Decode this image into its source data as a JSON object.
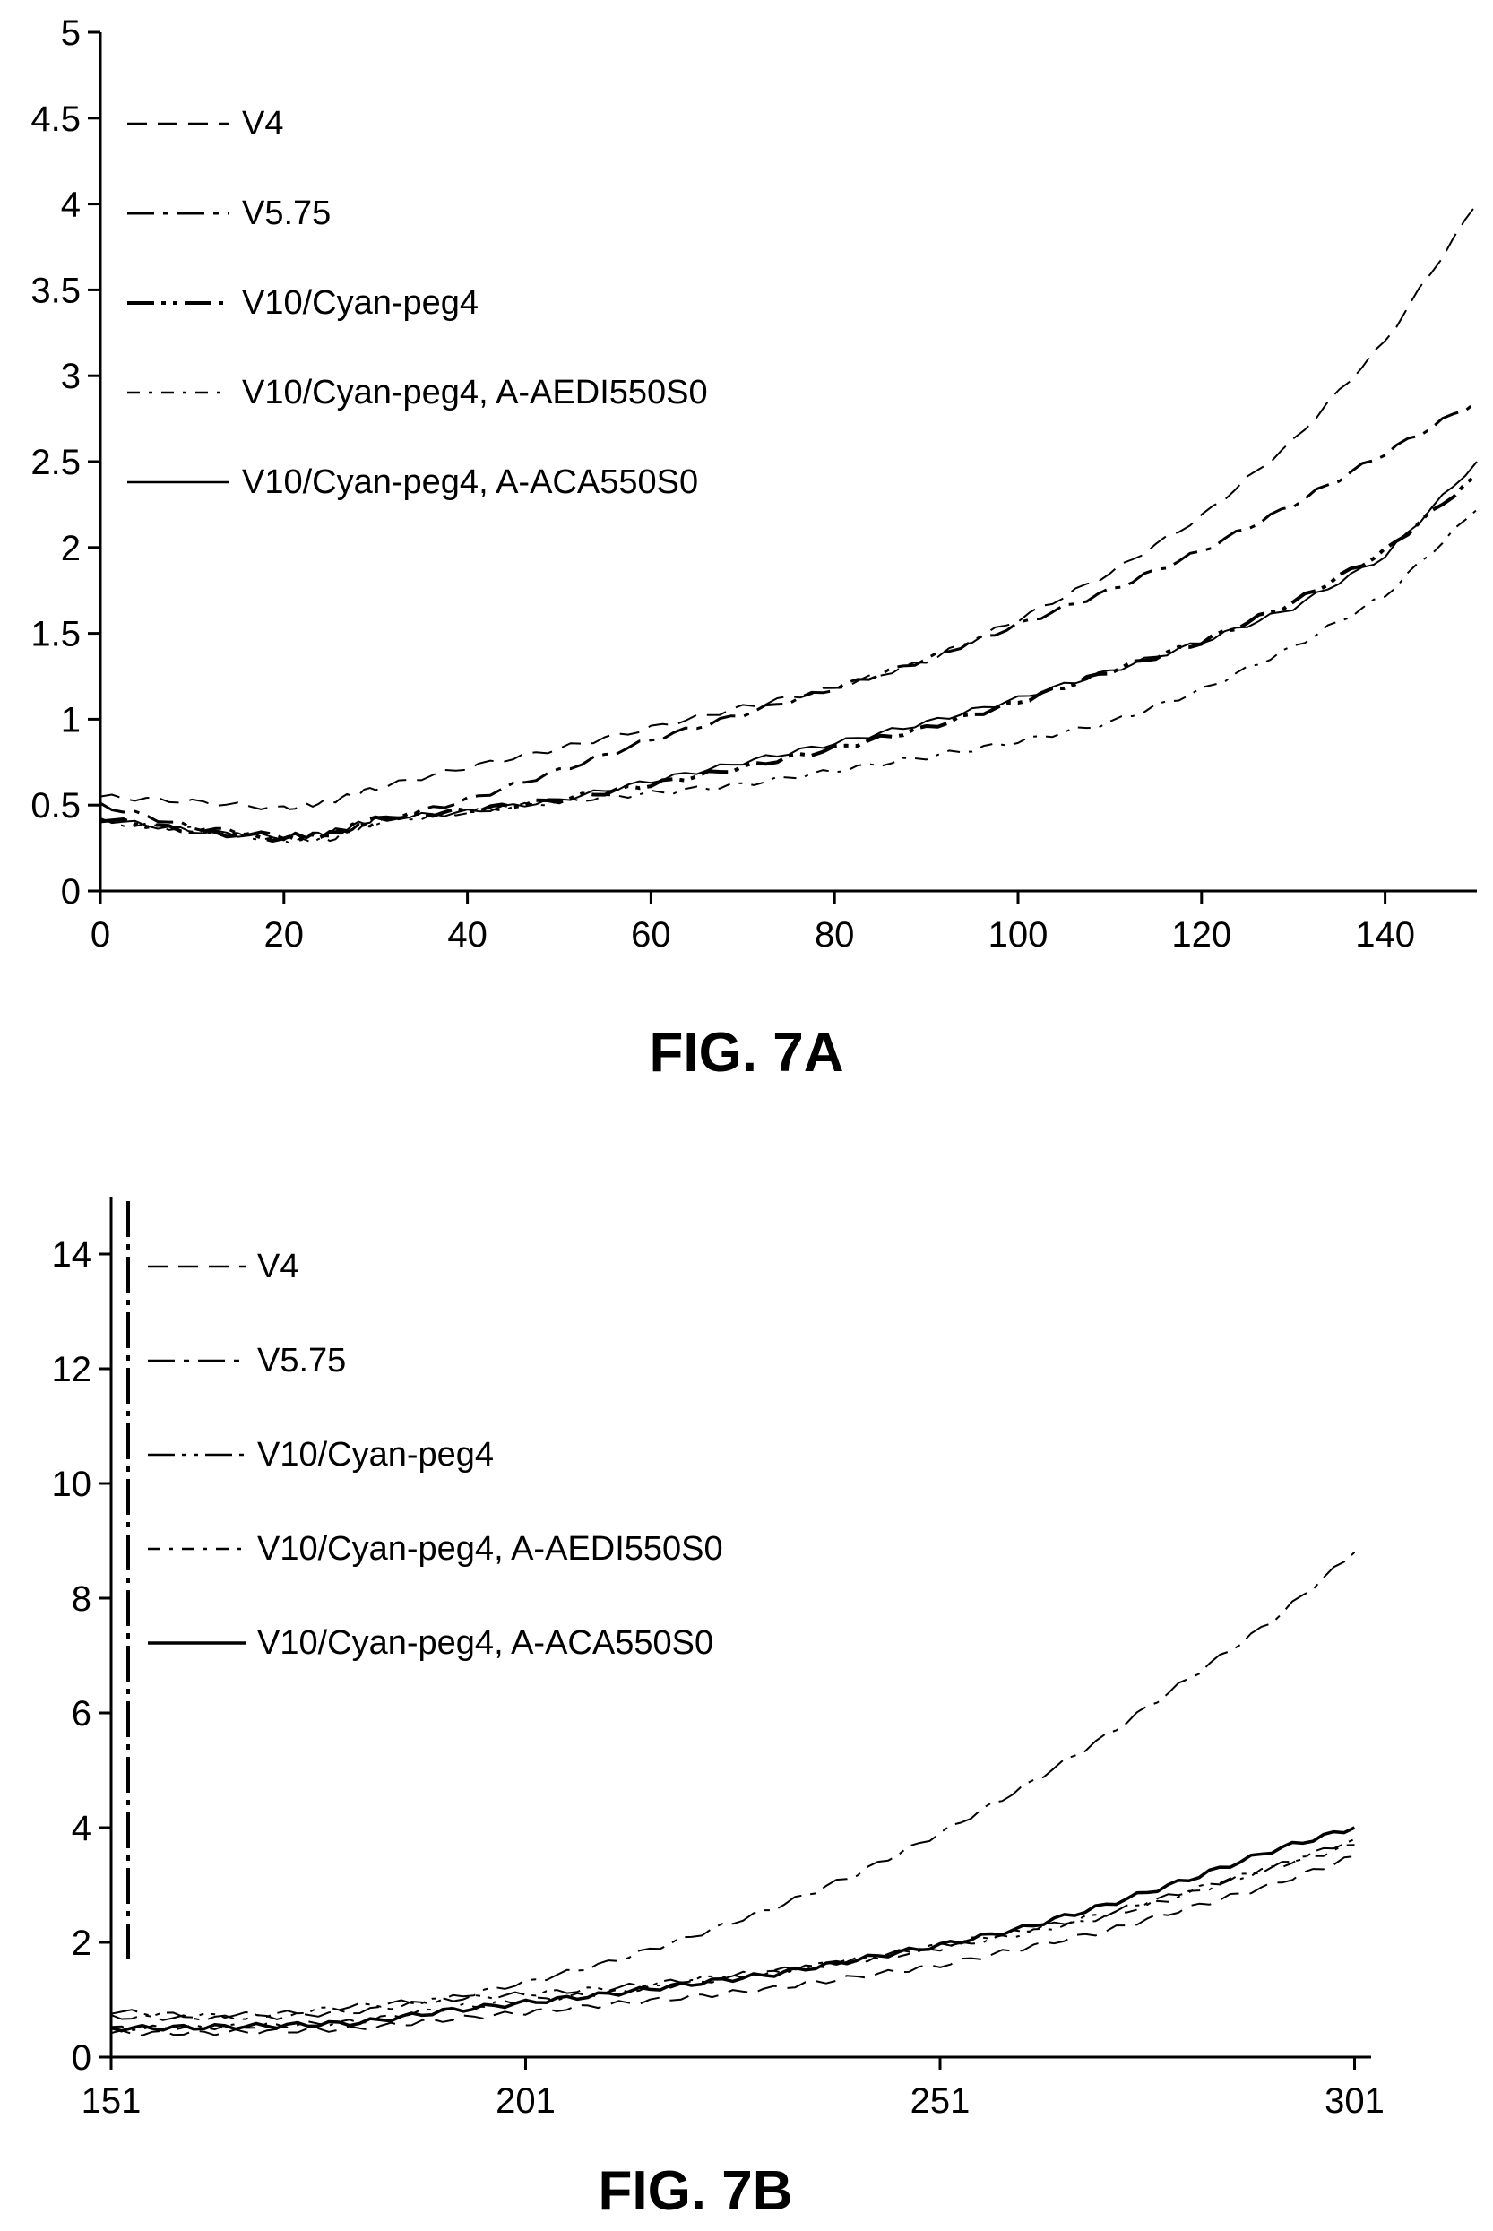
{
  "chart_data": [
    {
      "type": "line",
      "caption": "FIG. 7A",
      "xlim": [
        0,
        150
      ],
      "ylim": [
        0,
        5
      ],
      "xticks": [
        "0",
        "20",
        "40",
        "60",
        "80",
        "100",
        "120",
        "140"
      ],
      "yticks": [
        "0",
        "0.5",
        "1",
        "1.5",
        "2",
        "2.5",
        "3",
        "3.5",
        "4",
        "4.5",
        "5"
      ],
      "legend_position": "top-left",
      "x": [
        0,
        10,
        20,
        25,
        30,
        40,
        50,
        60,
        70,
        80,
        90,
        100,
        110,
        120,
        130,
        140,
        150
      ],
      "series": [
        {
          "name": "V4",
          "dash": "22,12",
          "width": 2,
          "values": [
            0.55,
            0.52,
            0.48,
            0.52,
            0.6,
            0.72,
            0.83,
            0.95,
            1.07,
            1.18,
            1.34,
            1.58,
            1.85,
            2.18,
            2.62,
            3.2,
            4.0
          ]
        },
        {
          "name": "V5.75",
          "dash": "30,10,6,10",
          "width": 3,
          "values": [
            0.5,
            0.37,
            0.32,
            0.33,
            0.4,
            0.53,
            0.7,
            0.88,
            1.03,
            1.18,
            1.35,
            1.55,
            1.75,
            1.98,
            2.25,
            2.55,
            2.85
          ]
        },
        {
          "name": "V10/Cyan-peg4",
          "dash": "30,8,5,8,5,8",
          "width": 4,
          "values": [
            0.42,
            0.35,
            0.3,
            0.33,
            0.42,
            0.47,
            0.53,
            0.62,
            0.72,
            0.83,
            0.95,
            1.1,
            1.28,
            1.45,
            1.68,
            1.98,
            2.42
          ]
        },
        {
          "name": "V10/Cyan-peg4, A-AEDI550S0",
          "dash": "14,10,4,10",
          "width": 2,
          "values": [
            0.4,
            0.36,
            0.29,
            0.3,
            0.4,
            0.46,
            0.52,
            0.57,
            0.62,
            0.7,
            0.78,
            0.87,
            0.98,
            1.17,
            1.42,
            1.72,
            2.22
          ]
        },
        {
          "name": "V10/Cyan-peg4, A-ACA550S0",
          "dash": "",
          "width": 2,
          "values": [
            0.42,
            0.35,
            0.31,
            0.34,
            0.42,
            0.46,
            0.53,
            0.64,
            0.75,
            0.86,
            0.98,
            1.12,
            1.28,
            1.45,
            1.65,
            1.95,
            2.5
          ]
        }
      ]
    },
    {
      "type": "line",
      "caption": "FIG. 7B",
      "xlim": [
        151,
        303
      ],
      "ylim": [
        0,
        15
      ],
      "xticks": [
        "151",
        "201",
        "251",
        "301"
      ],
      "yticks": [
        "0",
        "2",
        "4",
        "6",
        "8",
        "10",
        "12",
        "14"
      ],
      "legend_position": "top-left",
      "x": [
        151,
        161,
        171,
        181,
        191,
        201,
        211,
        221,
        231,
        241,
        251,
        261,
        271,
        281,
        291,
        301
      ],
      "series": [
        {
          "name": "V4",
          "dash": "22,12",
          "width": 2,
          "values": [
            0.42,
            0.42,
            0.45,
            0.5,
            0.65,
            0.78,
            0.92,
            1.05,
            1.2,
            1.4,
            1.6,
            1.9,
            2.2,
            2.6,
            3.0,
            3.5
          ]
        },
        {
          "name": "V5.75",
          "dash": "30,10,6,10",
          "width": 2,
          "values": [
            0.7,
            0.68,
            0.7,
            0.8,
            1.0,
            1.3,
            1.65,
            2.1,
            2.6,
            3.2,
            3.9,
            4.7,
            5.6,
            6.6,
            7.6,
            8.8
          ]
        },
        {
          "name": "V10/Cyan-peg4",
          "dash": "30,8,5,8,5,8",
          "width": 2,
          "values": [
            0.8,
            0.72,
            0.75,
            0.9,
            1.0,
            1.1,
            1.2,
            1.35,
            1.5,
            1.7,
            1.95,
            2.2,
            2.5,
            2.9,
            3.3,
            3.8
          ]
        },
        {
          "name": "V10/Cyan-peg4, A-AEDI550S0",
          "dash": "14,10,4,10",
          "width": 2,
          "values": [
            0.5,
            0.52,
            0.55,
            0.62,
            0.85,
            0.98,
            1.12,
            1.3,
            1.48,
            1.68,
            1.9,
            2.15,
            2.45,
            2.85,
            3.3,
            3.7
          ]
        },
        {
          "name": "V10/Cyan-peg4, A-ACA550S0",
          "dash": "",
          "width": 3.5,
          "values": [
            0.5,
            0.52,
            0.55,
            0.6,
            0.8,
            0.95,
            1.1,
            1.28,
            1.45,
            1.7,
            1.95,
            2.25,
            2.65,
            3.1,
            3.6,
            4.0
          ]
        }
      ]
    }
  ]
}
